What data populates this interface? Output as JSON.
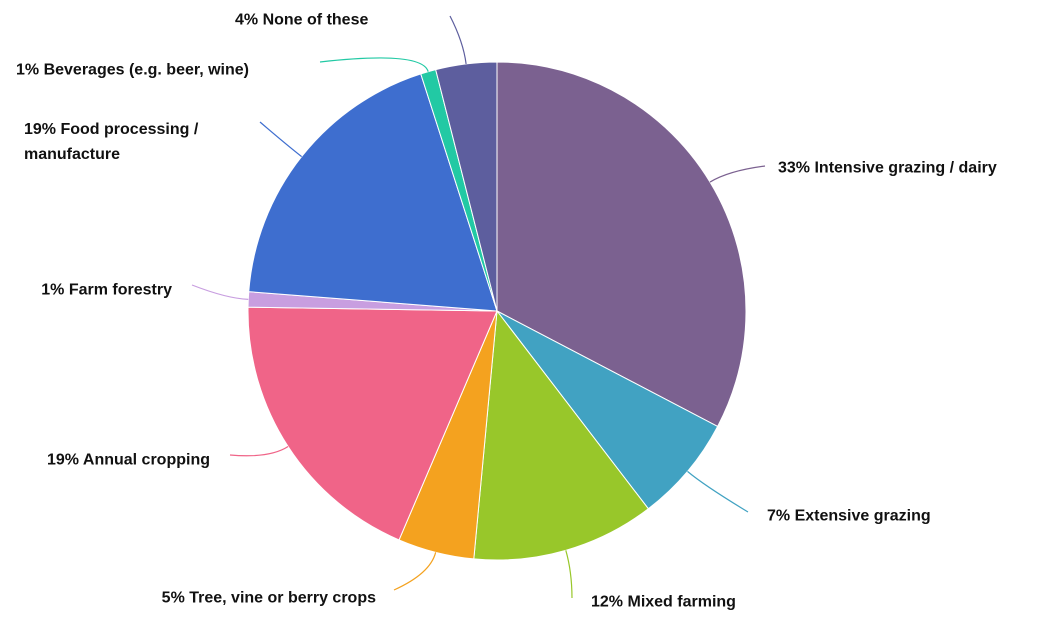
{
  "chart_data": {
    "type": "pie",
    "categories": [
      "Intensive grazing / dairy",
      "Extensive grazing",
      "Mixed farming",
      "Tree, vine or berry crops",
      "Annual cropping",
      "Farm forestry",
      "Food processing / manufacture",
      "Beverages (e.g. beer, wine)",
      "None of these"
    ],
    "values": [
      33,
      7,
      12,
      5,
      19,
      1,
      19,
      1,
      4
    ],
    "value_labels": [
      "33%",
      "7%",
      "12%",
      "5%",
      "19%",
      "1%",
      "19%",
      "1%",
      "4%"
    ],
    "colors": [
      "#7b6190",
      "#41a2c2",
      "#98c72a",
      "#f4a21f",
      "#f06488",
      "#c89ee0",
      "#3e6ecf",
      "#22c9a4",
      "#5d5e9e"
    ]
  }
}
